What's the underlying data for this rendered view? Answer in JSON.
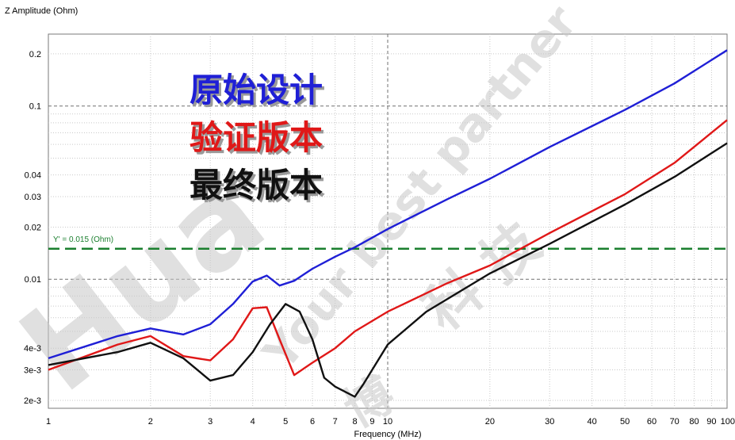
{
  "chart_data": {
    "type": "line",
    "ylabel": "Z Amplitude (Ohm)",
    "xlabel": "Frequency (MHz)",
    "x_scale": "log",
    "y_scale": "log",
    "xlim": [
      1,
      100
    ],
    "ylim": [
      0.0018,
      0.26
    ],
    "x_ticks": [
      {
        "v": 1,
        "label": "1"
      },
      {
        "v": 2,
        "label": "2"
      },
      {
        "v": 3,
        "label": "3"
      },
      {
        "v": 4,
        "label": "4"
      },
      {
        "v": 5,
        "label": "5"
      },
      {
        "v": 6,
        "label": "6"
      },
      {
        "v": 7,
        "label": "7"
      },
      {
        "v": 8,
        "label": "8"
      },
      {
        "v": 9,
        "label": "9"
      },
      {
        "v": 10,
        "label": "10"
      },
      {
        "v": 20,
        "label": "20"
      },
      {
        "v": 30,
        "label": "30"
      },
      {
        "v": 40,
        "label": "40"
      },
      {
        "v": 50,
        "label": "50"
      },
      {
        "v": 60,
        "label": "60"
      },
      {
        "v": 70,
        "label": "70"
      },
      {
        "v": 80,
        "label": "80"
      },
      {
        "v": 90,
        "label": "90"
      },
      {
        "v": 100,
        "label": "100"
      }
    ],
    "y_ticks": [
      {
        "v": 0.002,
        "label": "2e-3"
      },
      {
        "v": 0.003,
        "label": "3e-3"
      },
      {
        "v": 0.004,
        "label": "4e-3"
      },
      {
        "v": 0.01,
        "label": "0.01"
      },
      {
        "v": 0.02,
        "label": "0.02"
      },
      {
        "v": 0.03,
        "label": "0.03"
      },
      {
        "v": 0.04,
        "label": "0.04"
      },
      {
        "v": 0.1,
        "label": "0.1"
      },
      {
        "v": 0.2,
        "label": "0.2"
      }
    ],
    "reference_line": {
      "y": 0.015,
      "label": "Y' = 0.015 (Ohm)",
      "color": "#1a7f2e"
    },
    "series": [
      {
        "name": "原始设计",
        "color": "#1f1fd6",
        "points": [
          [
            1,
            0.0035
          ],
          [
            1.6,
            0.0047
          ],
          [
            2,
            0.0052
          ],
          [
            2.5,
            0.0048
          ],
          [
            3,
            0.0055
          ],
          [
            3.5,
            0.0072
          ],
          [
            4,
            0.0097
          ],
          [
            4.4,
            0.0105
          ],
          [
            4.8,
            0.0092
          ],
          [
            5.3,
            0.0098
          ],
          [
            6,
            0.0115
          ],
          [
            7,
            0.0135
          ],
          [
            8,
            0.0153
          ],
          [
            10,
            0.0195
          ],
          [
            15,
            0.029
          ],
          [
            20,
            0.038
          ],
          [
            30,
            0.058
          ],
          [
            50,
            0.095
          ],
          [
            70,
            0.135
          ],
          [
            100,
            0.21
          ]
        ]
      },
      {
        "name": "验证版本",
        "color": "#e01818",
        "points": [
          [
            1,
            0.003
          ],
          [
            1.6,
            0.0042
          ],
          [
            2,
            0.0047
          ],
          [
            2.5,
            0.0036
          ],
          [
            3,
            0.0034
          ],
          [
            3.5,
            0.0045
          ],
          [
            4,
            0.0068
          ],
          [
            4.4,
            0.0069
          ],
          [
            4.8,
            0.0045
          ],
          [
            5.3,
            0.0028
          ],
          [
            6,
            0.0033
          ],
          [
            7,
            0.004
          ],
          [
            8,
            0.005
          ],
          [
            10,
            0.0065
          ],
          [
            15,
            0.0095
          ],
          [
            20,
            0.012
          ],
          [
            30,
            0.0185
          ],
          [
            50,
            0.031
          ],
          [
            70,
            0.047
          ],
          [
            100,
            0.083
          ]
        ]
      },
      {
        "name": "最终版本",
        "color": "#111111",
        "points": [
          [
            1,
            0.0032
          ],
          [
            1.6,
            0.0038
          ],
          [
            2,
            0.0043
          ],
          [
            2.5,
            0.0035
          ],
          [
            3,
            0.0026
          ],
          [
            3.5,
            0.0028
          ],
          [
            4,
            0.0038
          ],
          [
            4.5,
            0.0055
          ],
          [
            5,
            0.0072
          ],
          [
            5.5,
            0.0065
          ],
          [
            6,
            0.0045
          ],
          [
            6.5,
            0.0027
          ],
          [
            7,
            0.0024
          ],
          [
            8,
            0.0021
          ],
          [
            8.5,
            0.0025
          ],
          [
            10,
            0.0042
          ],
          [
            13,
            0.0065
          ],
          [
            20,
            0.0108
          ],
          [
            30,
            0.016
          ],
          [
            50,
            0.027
          ],
          [
            70,
            0.039
          ],
          [
            100,
            0.061
          ]
        ]
      }
    ]
  }
}
